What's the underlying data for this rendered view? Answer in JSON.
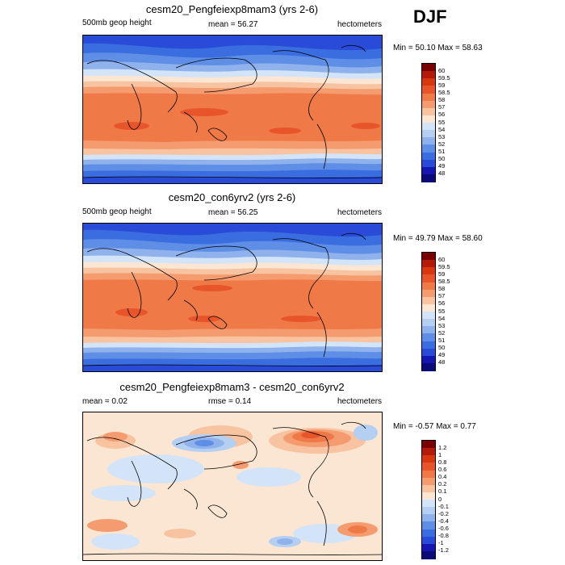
{
  "season": "DJF",
  "panels": [
    {
      "title": "cesm20_Pengfeiexp8mam3 (yrs 2-6)",
      "left_label": "500mb geop height",
      "center_label": "mean =  56.27",
      "right_label": "hectometers",
      "minmax": "Min =  50.10 Max =  58.63",
      "field": "absolute"
    },
    {
      "title": "cesm20_con6yrv2 (yrs 2-6)",
      "left_label": "500mb geop height",
      "center_label": "mean =  56.25",
      "right_label": "hectometers",
      "minmax": "Min =  49.79 Max =  58.60",
      "field": "absolute"
    },
    {
      "title": "cesm20_Pengfeiexp8mam3 - cesm20_con6yrv2",
      "left_label": "mean =   0.02",
      "center_label": "rmse =   0.14",
      "right_label": "hectometers",
      "minmax": "Min =  -0.57 Max =   0.77",
      "field": "difference"
    }
  ],
  "colorbars": {
    "absolute": {
      "labels": [
        "60",
        "59.5",
        "59",
        "58.5",
        "58",
        "57",
        "56",
        "55",
        "54",
        "53",
        "52",
        "51",
        "50",
        "49",
        "48"
      ],
      "colors": [
        "#7a0000",
        "#b31a0a",
        "#d8380f",
        "#e8552a",
        "#ef7a48",
        "#f59b70",
        "#f8c3a0",
        "#fbe6d4",
        "#d4e4f8",
        "#b4cff2",
        "#8fb2ec",
        "#5f8ee6",
        "#3a6ee0",
        "#2a4ad8",
        "#1616b0",
        "#0a0a78"
      ]
    },
    "difference": {
      "labels": [
        "1.2",
        "1",
        "0.8",
        "0.6",
        "0.4",
        "0.2",
        "0.1",
        "0",
        "-0.1",
        "-0.2",
        "-0.4",
        "-0.6",
        "-0.8",
        "-1",
        "-1.2"
      ],
      "colors": [
        "#7a0000",
        "#b31a0a",
        "#d8380f",
        "#e8552a",
        "#ef7a48",
        "#f59b70",
        "#f8c3a0",
        "#fbe6d4",
        "#d4e4f8",
        "#b4cff2",
        "#8fb2ec",
        "#5f8ee6",
        "#3a6ee0",
        "#2a4ad8",
        "#1616b0",
        "#0a0a78"
      ]
    }
  }
}
